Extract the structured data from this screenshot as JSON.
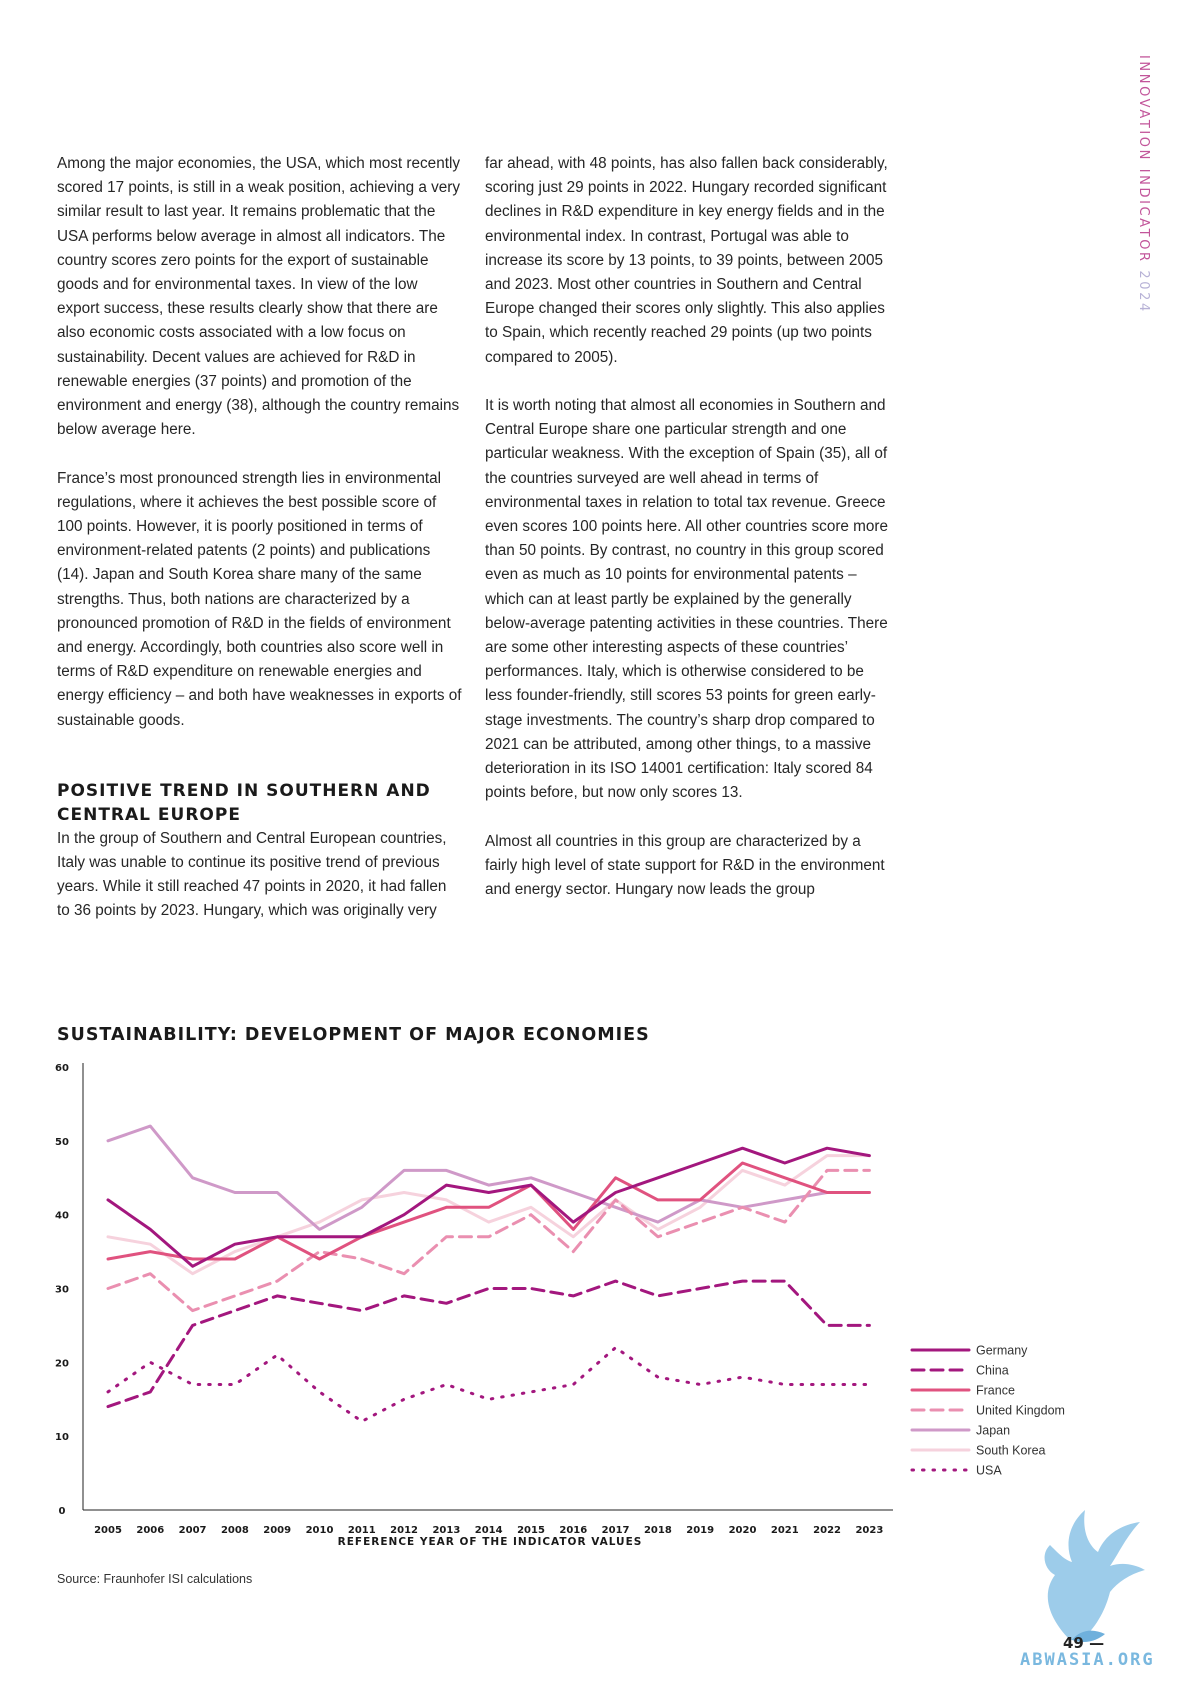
{
  "side_label": {
    "text": "INNOVATION INDICATOR",
    "year": "2024"
  },
  "left_column": {
    "paragraphs": [
      "Among the major economies, the USA, which most recently scored 17 points, is still in a weak position, achieving a very similar result to last year. It remains problematic that the USA performs below average in almost all indicators. The country scores zero points for the export of sustainable goods and for environmental taxes. In view of the low export success, these results clearly show that there are also economic costs associated with a low focus on sustainability. Decent values are achieved for R&D in renewable energies (37 points) and promotion of the environment and energy (38), although the country remains below average here.",
      "France’s most pronounced strength lies in environmental regulations, where it achieves the best possible score of 100 points. However, it is poorly positioned in terms of environment-related patents (2 points) and publications (14). Japan and South Korea share many of the same strengths. Thus, both nations are characterized by a pronounced promotion of R&D in the fields of environment and energy. Accordingly, both countries also score well in terms of R&D expenditure on renewable energies and energy efficiency – and both have weaknesses in exports of sustainable goods."
    ],
    "heading": "POSITIVE TREND IN SOUTHERN AND CENTRAL EUROPE",
    "after_heading": "In the group of Southern and Central European countries, Italy was unable to continue its positive trend of previous years. While it still reached 47 points in 2020, it had fallen to 36 points by 2023. Hungary, which was originally very"
  },
  "right_column": {
    "paragraphs": [
      "far ahead, with 48 points, has also fallen back considerably, scoring just 29 points in 2022. Hungary recorded significant declines in R&D expenditure in key energy fields and in the environmental index. In contrast, Portugal was able to increase its score by 13 points, to 39 points, between 2005 and 2023. Most other countries in Southern and Central Europe changed their scores only slightly. This also applies to Spain, which recently reached 29 points (up two points compared to 2005).",
      "It is worth noting that almost all economies in Southern and Central Europe share one particular strength and one particular weakness. With the exception of Spain (35), all of the countries surveyed are well ahead in terms of environmental taxes in relation to total tax revenue. Greece even scores 100 points here. All other countries score more than 50 points. By contrast, no country in this group scored even as much as 10 points for environmental patents – which can at least partly be explained by the generally below-average patenting activities in these countries. There are some other interesting aspects of these countries’ performances. Italy, which is otherwise considered to be less founder-friendly, still scores 53 points for green early-stage investments. The country’s sharp drop compared to 2021 can be attributed, among other things, to a massive deterioration in its ISO 14001 certification: Italy scored 84 points before, but now only scores 13.",
      "Almost all countries in this group are characterized by a fairly high level of state support for R&D in the environment and energy sector. Hungary now leads the group"
    ]
  },
  "source": "Source: Fraunhofer ISI calculations",
  "page_number": "49 —",
  "watermark": "ABWASIA.ORG",
  "chart_data": {
    "type": "line",
    "title": "SUSTAINABILITY: DEVELOPMENT OF MAJOR ECONOMIES",
    "xlabel": "REFERENCE YEAR OF THE INDICATOR VALUES",
    "ylabel": "",
    "x": [
      "2005",
      "2006",
      "2007",
      "2008",
      "2009",
      "2010",
      "2011",
      "2012",
      "2013",
      "2014",
      "2015",
      "2016",
      "2017",
      "2018",
      "2019",
      "2020",
      "2021",
      "2022",
      "2023"
    ],
    "ylim": [
      0,
      60
    ],
    "yticks": [
      "0",
      "10",
      "20",
      "30",
      "40",
      "50",
      "60"
    ],
    "grid": false,
    "legend": "right",
    "series": [
      {
        "name": "Germany",
        "color": "#a3177e",
        "dash": "solid",
        "values": [
          42,
          38,
          33,
          36,
          37,
          37,
          37,
          40,
          44,
          43,
          44,
          39,
          43,
          45,
          47,
          49,
          47,
          49,
          48
        ]
      },
      {
        "name": "China",
        "color": "#a3177e",
        "dash": "dashed",
        "values": [
          14,
          16,
          25,
          27,
          29,
          28,
          27,
          29,
          28,
          30,
          30,
          29,
          31,
          29,
          30,
          31,
          31,
          25,
          25
        ]
      },
      {
        "name": "France",
        "color": "#e0527f",
        "dash": "solid",
        "values": [
          34,
          35,
          34,
          34,
          37,
          34,
          37,
          39,
          41,
          41,
          44,
          38,
          45,
          42,
          42,
          47,
          45,
          43,
          43
        ]
      },
      {
        "name": "United Kingdom",
        "color": "#ea8fb0",
        "dash": "dashed",
        "values": [
          30,
          32,
          27,
          29,
          31,
          35,
          34,
          32,
          37,
          37,
          40,
          35,
          42,
          37,
          39,
          41,
          39,
          46,
          46
        ]
      },
      {
        "name": "Japan",
        "color": "#cf99c8",
        "dash": "solid",
        "values": [
          50,
          52,
          45,
          43,
          43,
          38,
          41,
          46,
          46,
          44,
          45,
          43,
          41,
          39,
          42,
          41,
          42,
          43,
          43
        ]
      },
      {
        "name": "South Korea",
        "color": "#f6d2dd",
        "dash": "solid",
        "values": [
          37,
          36,
          32,
          35,
          37,
          39,
          42,
          43,
          42,
          39,
          41,
          37,
          42,
          38,
          41,
          46,
          44,
          48,
          48
        ]
      },
      {
        "name": "USA",
        "color": "#a3177e",
        "dash": "dotted",
        "values": [
          16,
          20,
          17,
          17,
          21,
          16,
          12,
          15,
          17,
          15,
          16,
          17,
          22,
          18,
          17,
          18,
          17,
          17,
          17
        ]
      }
    ]
  }
}
